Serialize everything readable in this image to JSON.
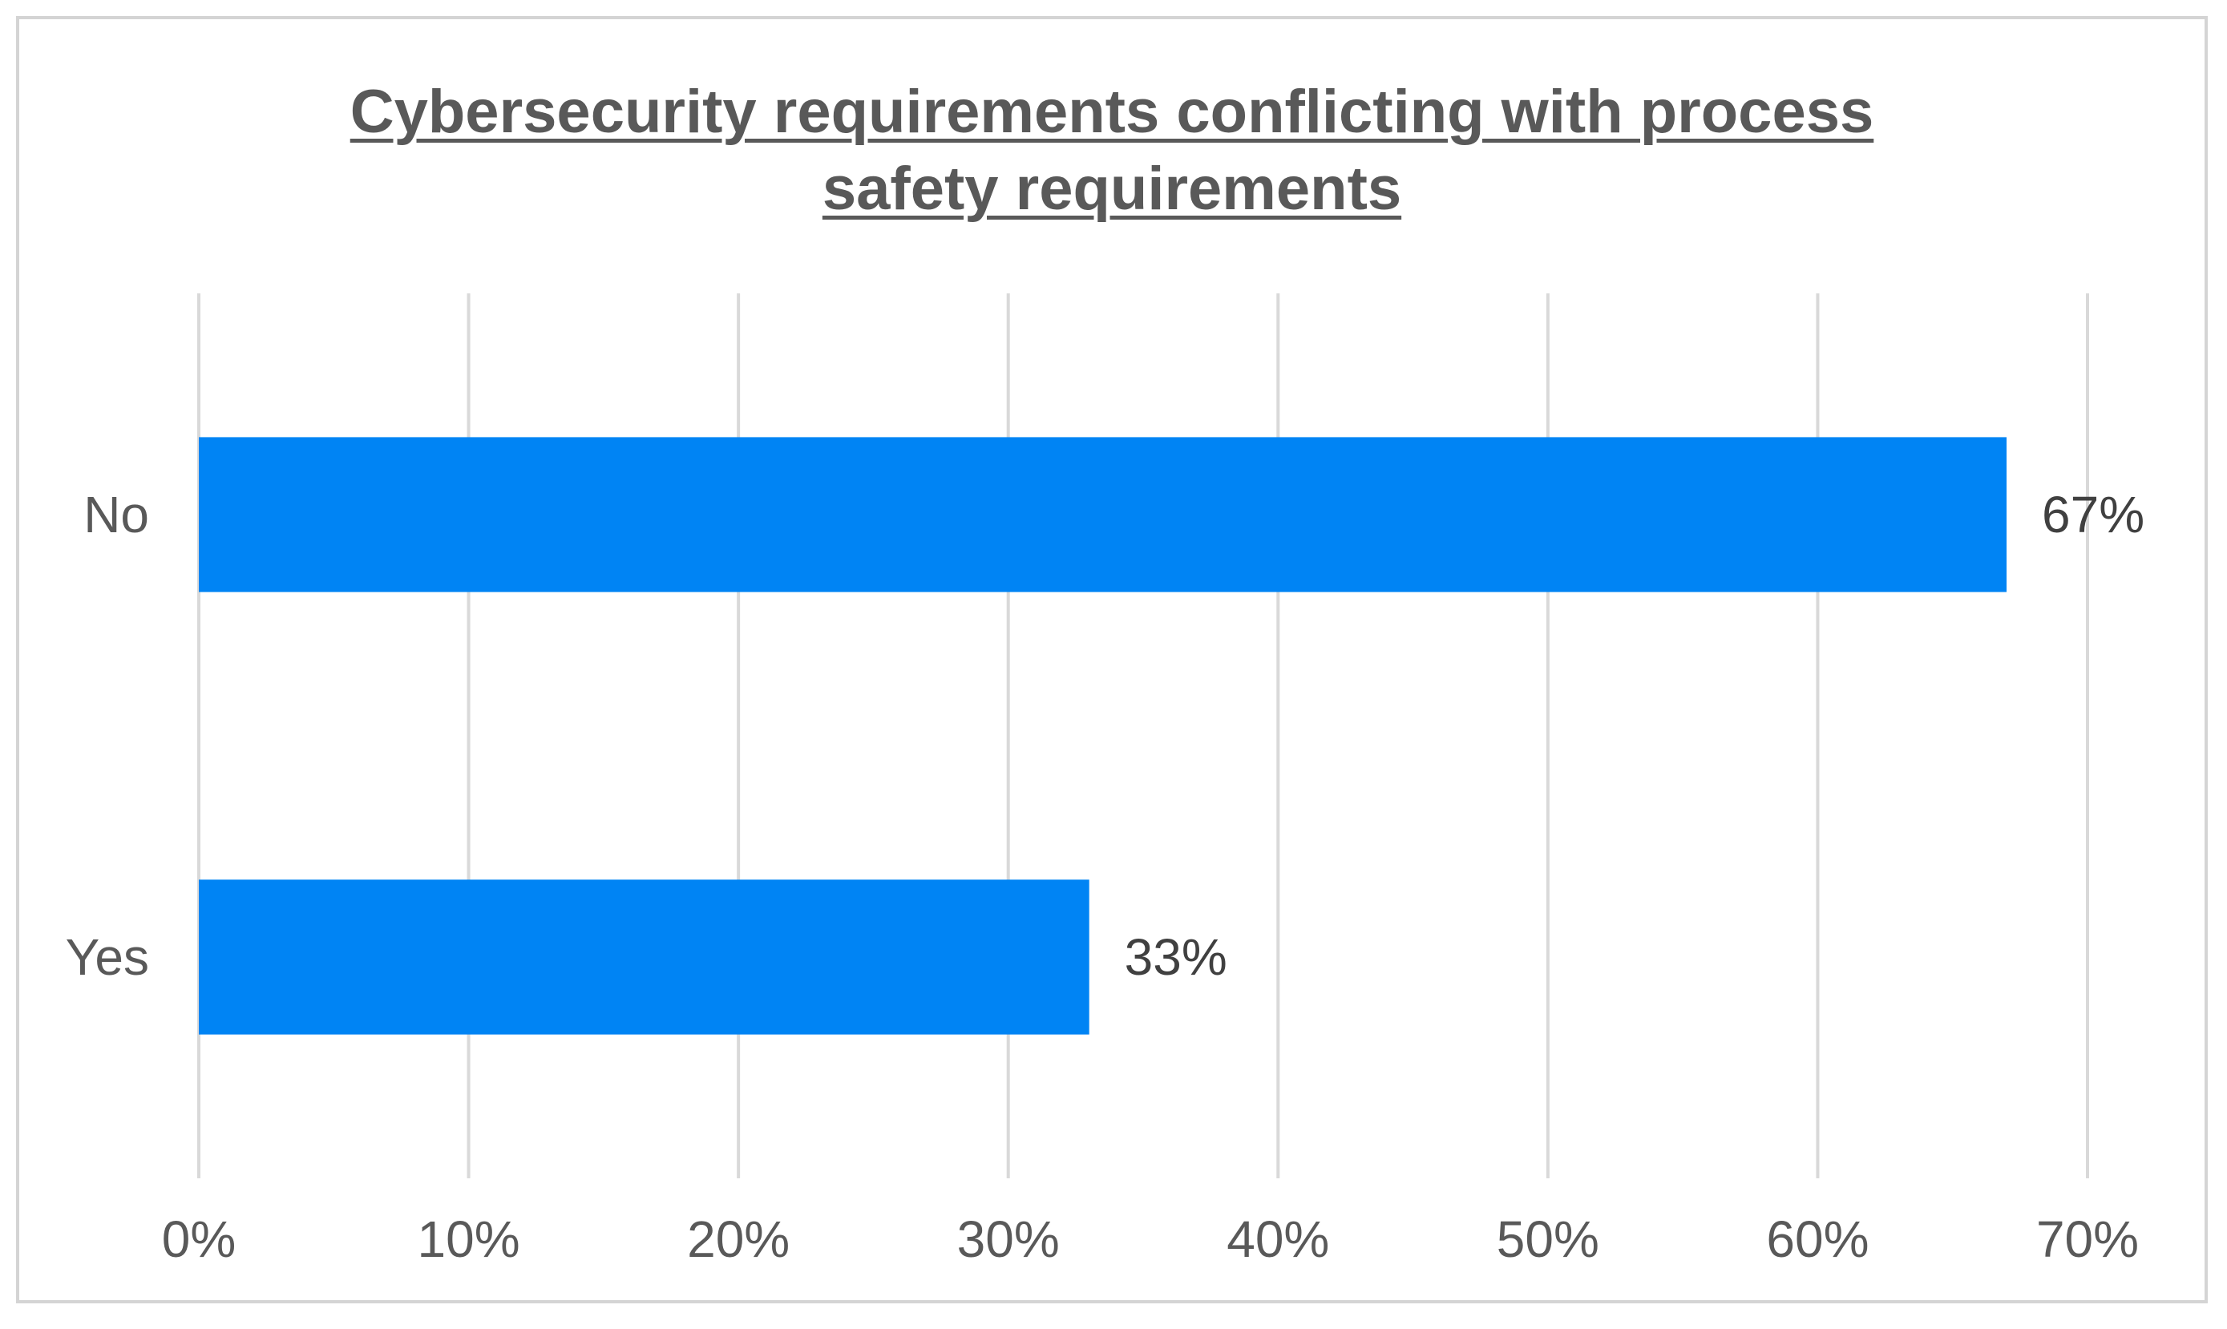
{
  "chart_data": {
    "type": "bar",
    "orientation": "horizontal",
    "title": "Cybersecurity requirements conflicting with process\nsafety requirements",
    "categories": [
      "No",
      "Yes"
    ],
    "values": [
      0.67,
      0.33
    ],
    "data_labels": [
      "67%",
      "33%"
    ],
    "xlabel": "",
    "ylabel": "",
    "xlim": [
      0,
      0.7
    ],
    "x_ticks": [
      0,
      0.1,
      0.2,
      0.3,
      0.4,
      0.5,
      0.6,
      0.7
    ],
    "x_tick_labels": [
      "0%",
      "10%",
      "20%",
      "30%",
      "40%",
      "50%",
      "60%",
      "70%"
    ],
    "grid": true,
    "legend": "none",
    "colors": {
      "bar": "#0084f4",
      "grid": "#d9d9d9",
      "frame": "#d4d4d4",
      "text": "#595959"
    }
  }
}
